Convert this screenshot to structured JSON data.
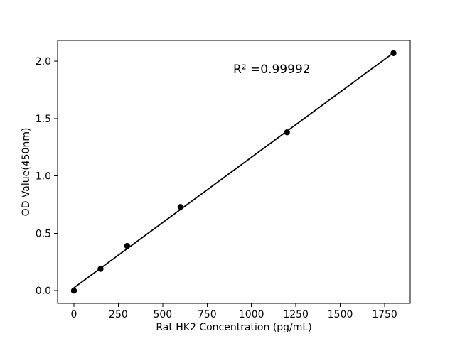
{
  "chart_data": {
    "type": "scatter",
    "title": "",
    "xlabel": "Rat HK2 Concentration (pg/mL)",
    "ylabel": "OD Value(450nm)",
    "annotation": "R² =0.99992",
    "x": [
      0,
      150,
      300,
      600,
      1200,
      1800
    ],
    "y": [
      0.0,
      0.19,
      0.39,
      0.73,
      1.38,
      2.07
    ],
    "trendline": {
      "x1": 0,
      "y1": 0.025,
      "x2": 1800,
      "y2": 2.073
    },
    "xlim": [
      -92,
      1894
    ],
    "ylim": [
      -0.11,
      2.18
    ],
    "xticks": [
      "0",
      "250",
      "500",
      "750",
      "1000",
      "1250",
      "1500",
      "1750"
    ],
    "yticks": [
      "0.0",
      "0.5",
      "1.0",
      "1.5",
      "2.0"
    ],
    "grid": false,
    "legend": "none",
    "marker_color": "#000000",
    "line_color": "#000000",
    "background_color": "#ffffff"
  }
}
